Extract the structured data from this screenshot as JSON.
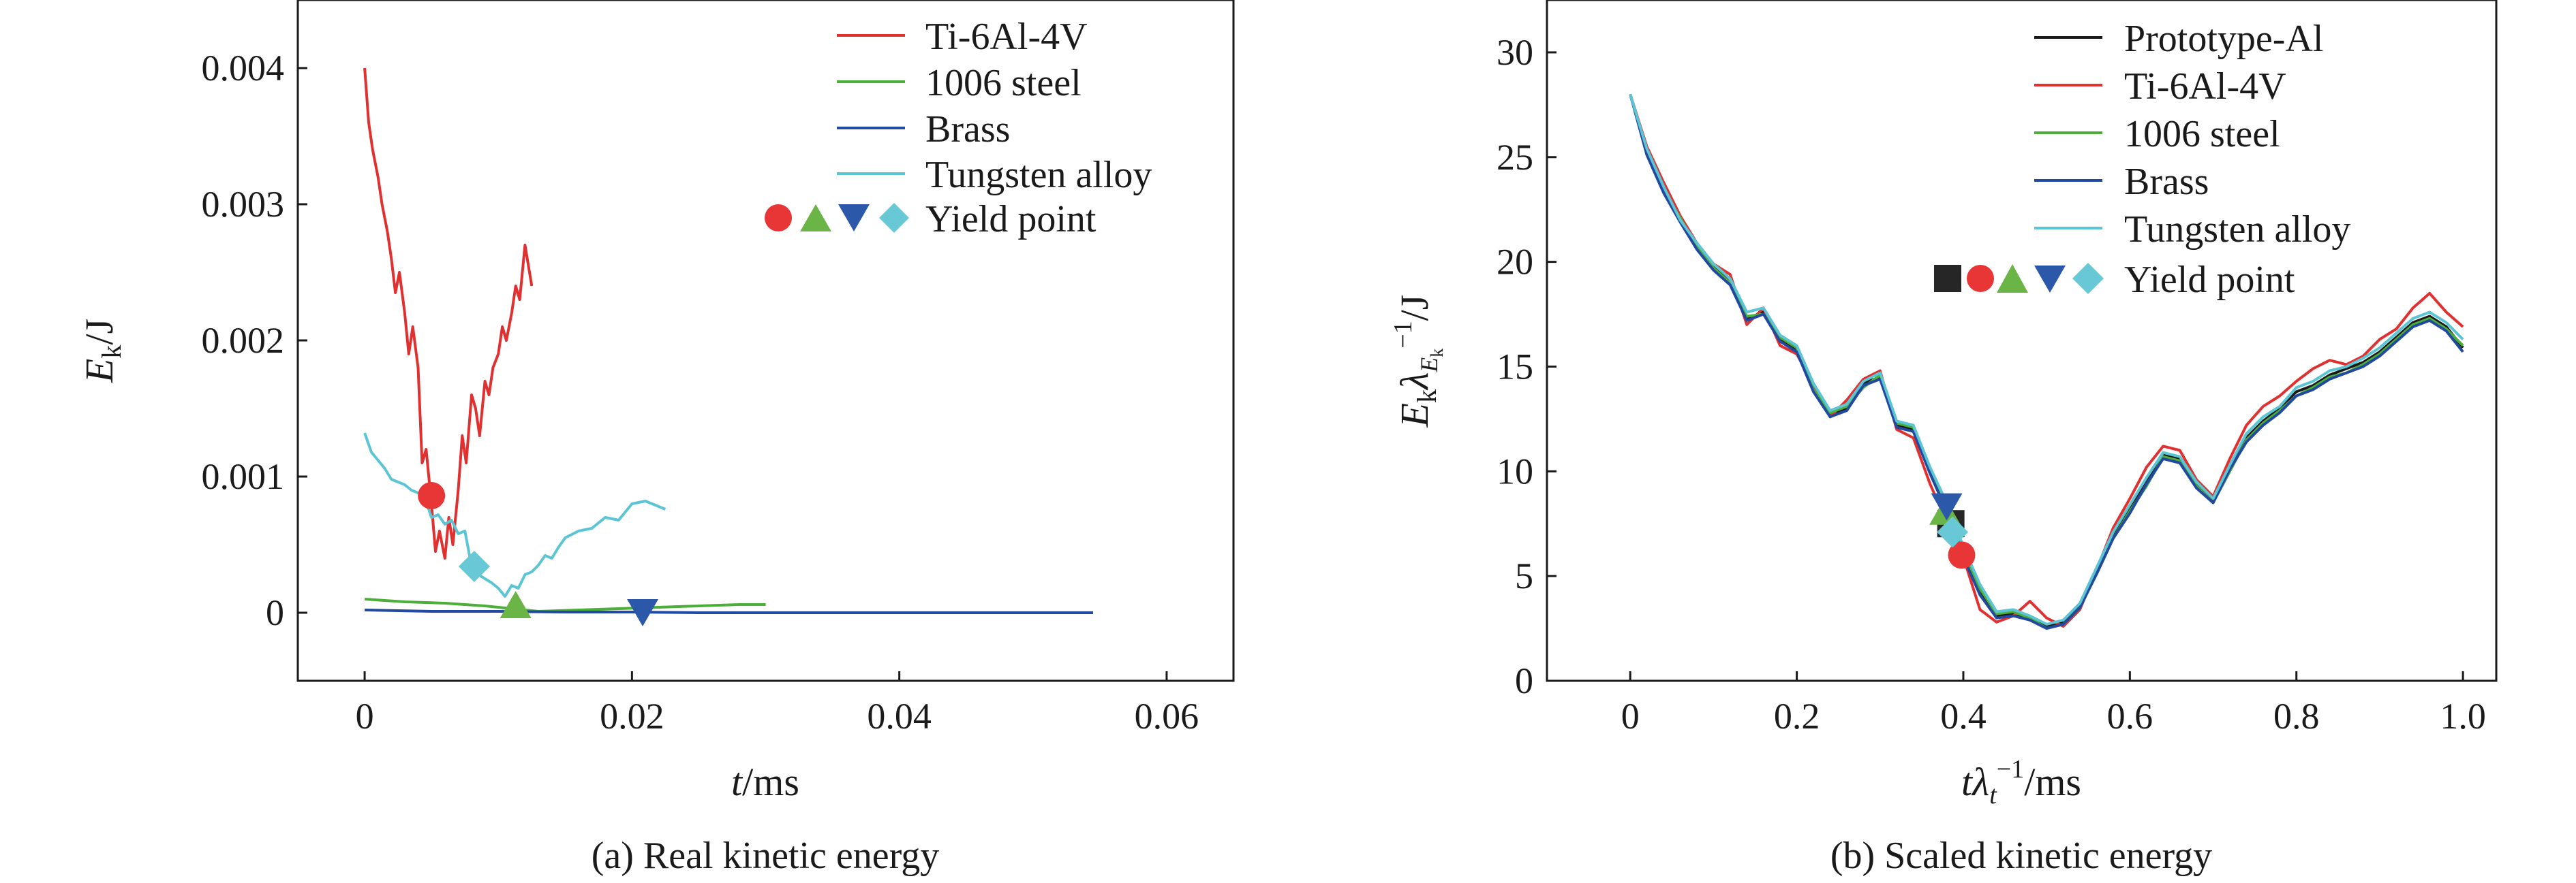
{
  "chart_data": [
    {
      "type": "line",
      "caption": "(a) Real kinetic energy",
      "xlabel": {
        "var": "t",
        "unit": "/ms"
      },
      "ylabel": {
        "var": "E",
        "sub": "k",
        "unit": "/J"
      },
      "xlim": [
        -0.005,
        0.065
      ],
      "ylim": [
        -0.0005,
        0.0045
      ],
      "xticks": [
        0,
        0.02,
        0.04,
        0.06
      ],
      "xtick_labels": [
        "0",
        "0.02",
        "0.04",
        "0.06"
      ],
      "yticks": [
        0,
        0.001,
        0.002,
        0.003,
        0.004
      ],
      "ytick_labels": [
        "0",
        "0.001",
        "0.002",
        "0.003",
        "0.004"
      ],
      "legend_position": "top-right",
      "yield_label": "Yield point",
      "series": [
        {
          "name": "Ti-6Al-4V",
          "color": "#e03030",
          "x": [
            0,
            0.0003,
            0.0006,
            0.001,
            0.0013,
            0.0017,
            0.002,
            0.0023,
            0.0026,
            0.003,
            0.0033,
            0.0036,
            0.004,
            0.0043,
            0.0046,
            0.005,
            0.0053,
            0.0056,
            0.006,
            0.0063,
            0.0066,
            0.007,
            0.0073,
            0.0076,
            0.008,
            0.0083,
            0.0086,
            0.009,
            0.0093,
            0.0096,
            0.01,
            0.0103,
            0.0106,
            0.011,
            0.0113,
            0.0116,
            0.012,
            0.0125
          ],
          "y": [
            0.004,
            0.0036,
            0.0034,
            0.0032,
            0.003,
            0.0028,
            0.0026,
            0.00235,
            0.0025,
            0.0022,
            0.0019,
            0.0021,
            0.0018,
            0.0011,
            0.0012,
            0.0008,
            0.00045,
            0.0006,
            0.0004,
            0.0007,
            0.0005,
            0.0009,
            0.0013,
            0.0011,
            0.0016,
            0.0015,
            0.0013,
            0.0017,
            0.0016,
            0.0018,
            0.0019,
            0.0021,
            0.002,
            0.0022,
            0.0024,
            0.0023,
            0.0027,
            0.0024
          ]
        },
        {
          "name": "1006 steel",
          "color": "#4caf3a",
          "x": [
            0,
            0.003,
            0.006,
            0.009,
            0.011,
            0.013,
            0.016,
            0.019,
            0.022,
            0.025,
            0.028,
            0.03
          ],
          "y": [
            0.0001,
            8e-05,
            7e-05,
            5e-05,
            3e-05,
            1e-05,
            2e-05,
            3e-05,
            4e-05,
            5e-05,
            6e-05,
            6e-05
          ]
        },
        {
          "name": "Brass",
          "color": "#2249a0",
          "x": [
            0,
            0.005,
            0.01,
            0.015,
            0.02,
            0.025,
            0.03,
            0.035,
            0.04,
            0.045,
            0.05,
            0.0545
          ],
          "y": [
            2e-05,
            1e-05,
            1e-05,
            5e-06,
            5e-06,
            0.0,
            0.0,
            0.0,
            0.0,
            0.0,
            0.0,
            0.0
          ]
        },
        {
          "name": "Tungsten alloy",
          "color": "#5cc5d4",
          "x": [
            0,
            0.0005,
            0.001,
            0.0015,
            0.002,
            0.0025,
            0.003,
            0.0035,
            0.004,
            0.0045,
            0.005,
            0.0055,
            0.006,
            0.0065,
            0.007,
            0.0075,
            0.008,
            0.0085,
            0.009,
            0.0095,
            0.01,
            0.0105,
            0.011,
            0.0115,
            0.012,
            0.0125,
            0.013,
            0.0135,
            0.014,
            0.0145,
            0.015,
            0.016,
            0.017,
            0.018,
            0.019,
            0.02,
            0.021,
            0.022,
            0.0225
          ],
          "y": [
            0.00132,
            0.00118,
            0.00112,
            0.00106,
            0.00098,
            0.00096,
            0.00094,
            0.0009,
            0.00088,
            0.00085,
            0.0007,
            0.00072,
            0.00065,
            0.00068,
            0.00058,
            0.0006,
            0.00034,
            0.00028,
            0.00025,
            0.00022,
            0.00018,
            0.00012,
            0.0002,
            0.00018,
            0.00028,
            0.0003,
            0.00035,
            0.00042,
            0.0004,
            0.00048,
            0.00055,
            0.0006,
            0.00062,
            0.0007,
            0.00068,
            0.0008,
            0.00082,
            0.00078,
            0.00076
          ]
        }
      ],
      "yield_points": [
        {
          "series": "Ti-6Al-4V",
          "marker": "circle",
          "color": "#e83535",
          "x": 0.005,
          "y": 0.00086
        },
        {
          "series": "1006 steel",
          "marker": "triangle-up",
          "color": "#6ab545",
          "x": 0.0113,
          "y": 6e-05
        },
        {
          "series": "Brass",
          "marker": "triangle-down",
          "color": "#2b58a8",
          "x": 0.0208,
          "y": 0.0
        },
        {
          "series": "Tungsten alloy",
          "marker": "diamond",
          "color": "#68c8d5",
          "x": 0.0082,
          "y": 0.00034
        }
      ]
    },
    {
      "type": "line",
      "caption": "(b) Scaled kinetic energy",
      "xlabel": {
        "var": "tλ",
        "sub": "t",
        "sup": "−1",
        "unit": "/ms"
      },
      "ylabel": {
        "var": "E",
        "sub": "k",
        "mid": "λ",
        "sub2": "E",
        "sub3": "k",
        "sup": "−1",
        "unit": "/J"
      },
      "xlim": [
        -0.1,
        1.04
      ],
      "ylim": [
        0,
        32.5
      ],
      "xticks": [
        0,
        0.2,
        0.4,
        0.6,
        0.8,
        1.0
      ],
      "xtick_labels": [
        "0",
        "0.2",
        "0.4",
        "0.6",
        "0.8",
        "1.0"
      ],
      "yticks": [
        0,
        5,
        10,
        15,
        20,
        25,
        30
      ],
      "ytick_labels": [
        "0",
        "5",
        "10",
        "15",
        "20",
        "25",
        "30"
      ],
      "legend_position": "top-right",
      "yield_label": "Yield point",
      "series": [
        {
          "name": "Prototype-Al",
          "color": "#1a1a1a",
          "x": [
            0,
            0.02,
            0.04,
            0.06,
            0.08,
            0.1,
            0.12,
            0.14,
            0.16,
            0.18,
            0.2,
            0.22,
            0.24,
            0.26,
            0.28,
            0.3,
            0.32,
            0.34,
            0.36,
            0.38,
            0.4,
            0.42,
            0.44,
            0.46,
            0.48,
            0.5,
            0.52,
            0.54,
            0.56,
            0.58,
            0.6,
            0.62,
            0.64,
            0.66,
            0.68,
            0.7,
            0.72,
            0.74,
            0.76,
            0.78,
            0.8,
            0.82,
            0.84,
            0.86,
            0.88,
            0.9,
            0.92,
            0.94,
            0.96,
            0.98,
            1.0
          ],
          "y": [
            28.0,
            25.3,
            23.5,
            22.0,
            20.8,
            19.8,
            19.0,
            17.3,
            17.6,
            16.3,
            15.8,
            14.0,
            12.7,
            13.0,
            14.2,
            14.5,
            12.2,
            12.0,
            10.0,
            8.2,
            6.0,
            4.2,
            3.1,
            3.2,
            3.0,
            2.6,
            2.8,
            3.6,
            5.2,
            6.9,
            8.2,
            9.5,
            10.8,
            10.6,
            9.4,
            8.6,
            10.2,
            11.6,
            12.4,
            13.0,
            13.8,
            14.1,
            14.6,
            14.9,
            15.2,
            15.7,
            16.4,
            17.1,
            17.4,
            16.9,
            15.9
          ]
        },
        {
          "name": "Ti-6Al-4V",
          "color": "#e03030",
          "x": [
            0,
            0.02,
            0.04,
            0.06,
            0.08,
            0.1,
            0.12,
            0.14,
            0.16,
            0.18,
            0.2,
            0.22,
            0.24,
            0.26,
            0.28,
            0.3,
            0.32,
            0.34,
            0.36,
            0.38,
            0.4,
            0.42,
            0.44,
            0.46,
            0.48,
            0.5,
            0.52,
            0.54,
            0.56,
            0.58,
            0.6,
            0.62,
            0.64,
            0.66,
            0.68,
            0.7,
            0.72,
            0.74,
            0.76,
            0.78,
            0.8,
            0.82,
            0.84,
            0.86,
            0.88,
            0.9,
            0.92,
            0.94,
            0.96,
            0.98,
            1.0
          ],
          "y": [
            28.0,
            25.5,
            23.8,
            22.2,
            20.9,
            19.9,
            19.4,
            17.0,
            17.8,
            16.0,
            15.6,
            14.1,
            12.6,
            13.4,
            14.4,
            14.8,
            12.0,
            11.6,
            9.4,
            7.6,
            5.9,
            3.4,
            2.8,
            3.1,
            3.8,
            3.0,
            2.6,
            3.4,
            5.3,
            7.3,
            8.7,
            10.2,
            11.2,
            11.0,
            9.6,
            8.8,
            10.6,
            12.2,
            13.1,
            13.6,
            14.3,
            14.9,
            15.3,
            15.1,
            15.5,
            16.3,
            16.8,
            17.8,
            18.5,
            17.6,
            16.9
          ]
        },
        {
          "name": "1006 steel",
          "color": "#4caf3a",
          "x": [
            0,
            0.02,
            0.04,
            0.06,
            0.08,
            0.1,
            0.12,
            0.14,
            0.16,
            0.18,
            0.2,
            0.22,
            0.24,
            0.26,
            0.28,
            0.3,
            0.32,
            0.34,
            0.36,
            0.38,
            0.4,
            0.42,
            0.44,
            0.46,
            0.48,
            0.5,
            0.52,
            0.54,
            0.56,
            0.58,
            0.6,
            0.62,
            0.64,
            0.66,
            0.68,
            0.7,
            0.72,
            0.74,
            0.76,
            0.78,
            0.8,
            0.82,
            0.84,
            0.86,
            0.88,
            0.9,
            0.92,
            0.94,
            0.96,
            0.98,
            1.0
          ],
          "y": [
            28.0,
            25.2,
            23.4,
            22.1,
            20.7,
            19.7,
            19.0,
            17.4,
            17.5,
            16.4,
            15.9,
            13.9,
            12.8,
            13.1,
            14.0,
            14.6,
            12.3,
            12.1,
            10.1,
            8.4,
            6.2,
            4.4,
            3.2,
            3.3,
            3.0,
            2.5,
            2.7,
            3.5,
            5.1,
            6.8,
            8.1,
            9.3,
            10.7,
            10.5,
            9.3,
            8.5,
            10.0,
            11.5,
            12.3,
            12.9,
            13.6,
            14.0,
            14.5,
            14.7,
            15.1,
            15.6,
            16.3,
            17.0,
            17.3,
            16.8,
            16.0
          ]
        },
        {
          "name": "Brass",
          "color": "#2249a0",
          "x": [
            0,
            0.02,
            0.04,
            0.06,
            0.08,
            0.1,
            0.12,
            0.14,
            0.16,
            0.18,
            0.2,
            0.22,
            0.24,
            0.26,
            0.28,
            0.3,
            0.32,
            0.34,
            0.36,
            0.38,
            0.4,
            0.42,
            0.44,
            0.46,
            0.48,
            0.5,
            0.52,
            0.54,
            0.56,
            0.58,
            0.6,
            0.62,
            0.64,
            0.66,
            0.68,
            0.7,
            0.72,
            0.74,
            0.76,
            0.78,
            0.8,
            0.82,
            0.84,
            0.86,
            0.88,
            0.9,
            0.92,
            0.94,
            0.96,
            0.98,
            1.0
          ],
          "y": [
            28.0,
            25.1,
            23.3,
            21.9,
            20.6,
            19.6,
            18.9,
            17.2,
            17.5,
            16.2,
            15.7,
            13.8,
            12.6,
            12.9,
            14.1,
            14.4,
            12.1,
            11.9,
            9.9,
            8.1,
            5.9,
            4.1,
            3.0,
            3.1,
            2.9,
            2.5,
            2.7,
            3.5,
            5.1,
            6.8,
            8.0,
            9.4,
            10.6,
            10.4,
            9.2,
            8.5,
            10.1,
            11.4,
            12.2,
            12.8,
            13.6,
            13.9,
            14.4,
            14.7,
            15.0,
            15.5,
            16.2,
            16.9,
            17.2,
            16.7,
            15.7
          ]
        },
        {
          "name": "Tungsten alloy",
          "color": "#5cc5d4",
          "x": [
            0,
            0.02,
            0.04,
            0.06,
            0.08,
            0.1,
            0.12,
            0.14,
            0.16,
            0.18,
            0.2,
            0.22,
            0.24,
            0.26,
            0.28,
            0.3,
            0.32,
            0.34,
            0.36,
            0.38,
            0.4,
            0.42,
            0.44,
            0.46,
            0.48,
            0.5,
            0.52,
            0.54,
            0.56,
            0.58,
            0.6,
            0.62,
            0.64,
            0.66,
            0.68,
            0.7,
            0.72,
            0.74,
            0.76,
            0.78,
            0.8,
            0.82,
            0.84,
            0.86,
            0.88,
            0.9,
            0.92,
            0.94,
            0.96,
            0.98,
            1.0
          ],
          "y": [
            28.0,
            25.4,
            23.6,
            22.0,
            20.9,
            19.9,
            19.2,
            17.6,
            17.8,
            16.5,
            16.0,
            14.2,
            12.9,
            13.2,
            14.3,
            14.7,
            12.4,
            12.2,
            10.2,
            8.5,
            6.4,
            4.6,
            3.3,
            3.4,
            3.1,
            2.7,
            2.9,
            3.7,
            5.4,
            7.1,
            8.4,
            9.7,
            10.9,
            10.7,
            9.5,
            8.7,
            10.3,
            11.8,
            12.6,
            13.1,
            14.0,
            14.3,
            14.8,
            15.0,
            15.4,
            15.9,
            16.6,
            17.3,
            17.6,
            17.1,
            16.3
          ]
        }
      ],
      "yield_points": [
        {
          "series": "Prototype-Al",
          "marker": "square",
          "color": "#262626",
          "x": 0.385,
          "y": 7.5
        },
        {
          "series": "Ti-6Al-4V",
          "marker": "circle",
          "color": "#e83535",
          "x": 0.398,
          "y": 6.0
        },
        {
          "series": "1006 steel",
          "marker": "triangle-up",
          "color": "#6ab545",
          "x": 0.378,
          "y": 8.1
        },
        {
          "series": "Brass",
          "marker": "triangle-down",
          "color": "#2b58a8",
          "x": 0.38,
          "y": 8.3
        },
        {
          "series": "Tungsten alloy",
          "marker": "diamond",
          "color": "#68c8d5",
          "x": 0.387,
          "y": 7.1
        }
      ]
    }
  ]
}
